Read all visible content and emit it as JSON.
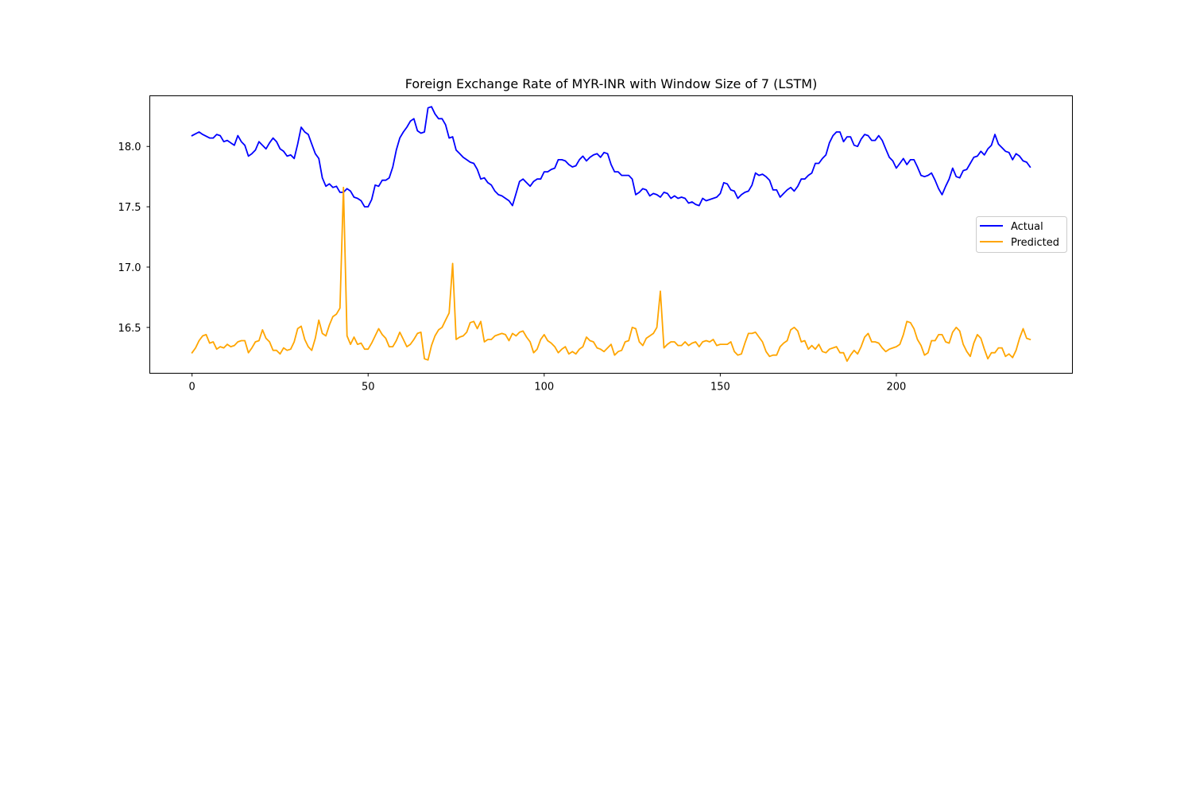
{
  "chart_data": {
    "type": "line",
    "title": "Foreign Exchange Rate of MYR-INR with Window Size of 7 (LSTM)",
    "xlabel": "",
    "ylabel": "",
    "xlim": [
      -12,
      250
    ],
    "ylim": [
      16.12,
      18.42
    ],
    "x_ticks": [
      0,
      50,
      100,
      150,
      200
    ],
    "y_ticks": [
      16.5,
      17.0,
      17.5,
      18.0
    ],
    "x_tick_labels": [
      "0",
      "50",
      "100",
      "150",
      "200"
    ],
    "y_tick_labels": [
      "16.5",
      "17.0",
      "17.5",
      "18.0"
    ],
    "grid": false,
    "legend_position": "center-right",
    "series": [
      {
        "name": "Actual",
        "color": "#0000ff",
        "x": [
          0,
          2,
          3,
          5,
          6,
          7,
          8,
          9,
          10,
          11,
          12,
          13,
          14,
          15,
          16,
          17,
          18,
          19,
          20,
          21,
          22,
          23,
          24,
          25,
          26,
          27,
          28,
          29,
          30,
          31,
          32,
          33,
          34,
          35,
          36,
          37,
          38,
          39,
          40,
          41,
          42,
          43,
          44,
          45,
          46,
          47,
          48,
          49,
          50,
          51,
          52,
          53,
          54,
          55,
          56,
          57,
          58,
          59,
          60,
          61,
          62,
          63,
          64,
          65,
          66,
          67,
          68,
          69,
          70,
          71,
          72,
          73,
          74,
          75,
          76,
          77,
          78,
          79,
          80,
          81,
          82,
          83,
          84,
          85,
          86,
          87,
          88,
          89,
          90,
          91,
          92,
          93,
          94,
          95,
          96,
          97,
          98,
          99,
          100,
          101,
          102,
          103,
          104,
          105,
          106,
          107,
          108,
          109,
          110,
          111,
          112,
          113,
          114,
          115,
          116,
          117,
          118,
          119,
          120,
          121,
          122,
          123,
          124,
          125,
          126,
          127,
          128,
          129,
          130,
          131,
          132,
          133,
          134,
          135,
          136,
          137,
          138,
          139,
          140,
          141,
          142,
          143,
          144,
          145,
          146,
          147,
          148,
          149,
          150,
          151,
          152,
          153,
          154,
          155,
          156,
          157,
          158,
          159,
          160,
          161,
          162,
          163,
          164,
          165,
          166,
          167,
          168,
          169,
          170,
          171,
          172,
          173,
          174,
          175,
          176,
          177,
          178,
          179,
          180,
          181,
          182,
          183,
          184,
          185,
          186,
          187,
          188,
          189,
          190,
          191,
          192,
          193,
          194,
          195,
          196,
          197,
          198,
          199,
          200,
          201,
          202,
          203,
          204,
          205,
          206,
          207,
          208,
          209,
          210,
          211,
          212,
          213,
          214,
          215,
          216,
          217,
          218,
          219,
          220,
          221,
          222,
          223,
          224,
          225,
          226,
          227,
          228,
          229,
          230,
          231,
          232,
          233,
          234,
          235,
          236,
          237,
          238
        ],
        "values": [
          18.09,
          18.12,
          18.1,
          18.07,
          18.07,
          18.1,
          18.09,
          18.04,
          18.05,
          18.03,
          18.01,
          18.09,
          18.04,
          18.01,
          17.92,
          17.94,
          17.97,
          18.04,
          18.01,
          17.98,
          18.03,
          18.07,
          18.04,
          17.98,
          17.96,
          17.92,
          17.93,
          17.9,
          18.02,
          18.16,
          18.12,
          18.1,
          18.02,
          17.94,
          17.9,
          17.74,
          17.67,
          17.69,
          17.66,
          17.67,
          17.62,
          17.62,
          17.65,
          17.63,
          17.58,
          17.57,
          17.55,
          17.5,
          17.5,
          17.56,
          17.68,
          17.67,
          17.72,
          17.72,
          17.74,
          17.83,
          17.97,
          18.07,
          18.12,
          18.16,
          18.21,
          18.23,
          18.13,
          18.11,
          18.12,
          18.32,
          18.33,
          18.27,
          18.23,
          18.23,
          18.18,
          18.07,
          18.08,
          17.97,
          17.94,
          17.91,
          17.89,
          17.87,
          17.86,
          17.81,
          17.73,
          17.74,
          17.7,
          17.68,
          17.63,
          17.6,
          17.59,
          17.57,
          17.55,
          17.51,
          17.61,
          17.71,
          17.73,
          17.7,
          17.67,
          17.71,
          17.73,
          17.73,
          17.79,
          17.79,
          17.81,
          17.82,
          17.89,
          17.89,
          17.88,
          17.85,
          17.83,
          17.84,
          17.89,
          17.92,
          17.88,
          17.91,
          17.93,
          17.94,
          17.91,
          17.95,
          17.94,
          17.85,
          17.79,
          17.79,
          17.76,
          17.76,
          17.76,
          17.73,
          17.6,
          17.62,
          17.65,
          17.64,
          17.59,
          17.61,
          17.6,
          17.58,
          17.62,
          17.61,
          17.57,
          17.59,
          17.57,
          17.58,
          17.57,
          17.53,
          17.54,
          17.52,
          17.51,
          17.57,
          17.55,
          17.56,
          17.57,
          17.58,
          17.61,
          17.7,
          17.69,
          17.64,
          17.63,
          17.57,
          17.6,
          17.62,
          17.63,
          17.68,
          17.78,
          17.76,
          17.77,
          17.75,
          17.72,
          17.64,
          17.64,
          17.58,
          17.61,
          17.64,
          17.66,
          17.63,
          17.67,
          17.73,
          17.73,
          17.76,
          17.78,
          17.86,
          17.86,
          17.9,
          17.93,
          18.03,
          18.09,
          18.12,
          18.12,
          18.04,
          18.08,
          18.08,
          18.01,
          18.0,
          18.06,
          18.1,
          18.09,
          18.05,
          18.05,
          18.09,
          18.05,
          17.98,
          17.91,
          17.88,
          17.82,
          17.86,
          17.9,
          17.85,
          17.89,
          17.89,
          17.83,
          17.76,
          17.75,
          17.76,
          17.78,
          17.72,
          17.65,
          17.6,
          17.67,
          17.73,
          17.82,
          17.75,
          17.74,
          17.8,
          17.81,
          17.86,
          17.91,
          17.92,
          17.96,
          17.93,
          17.98,
          18.01,
          18.1,
          18.02,
          17.99,
          17.96,
          17.95,
          17.89,
          17.94,
          17.92,
          17.88,
          17.87,
          17.83
        ]
      },
      {
        "name": "Predicted",
        "color": "#ffa500",
        "x": [
          0,
          1,
          2,
          3,
          4,
          5,
          6,
          7,
          8,
          9,
          10,
          11,
          12,
          13,
          14,
          15,
          16,
          17,
          18,
          19,
          20,
          21,
          22,
          23,
          24,
          25,
          26,
          27,
          28,
          29,
          30,
          31,
          32,
          33,
          34,
          35,
          36,
          37,
          38,
          39,
          40,
          41,
          42,
          43,
          44,
          45,
          46,
          47,
          48,
          49,
          50,
          51,
          52,
          53,
          54,
          55,
          56,
          57,
          58,
          59,
          60,
          61,
          62,
          63,
          64,
          65,
          66,
          67,
          68,
          69,
          70,
          71,
          72,
          73,
          74,
          75,
          76,
          77,
          78,
          79,
          80,
          81,
          82,
          83,
          84,
          85,
          86,
          87,
          88,
          89,
          90,
          91,
          92,
          93,
          94,
          95,
          96,
          97,
          98,
          99,
          100,
          101,
          102,
          103,
          104,
          105,
          106,
          107,
          108,
          109,
          110,
          111,
          112,
          113,
          114,
          115,
          116,
          117,
          118,
          119,
          120,
          121,
          122,
          123,
          124,
          125,
          126,
          127,
          128,
          129,
          130,
          131,
          132,
          133,
          134,
          135,
          136,
          137,
          138,
          139,
          140,
          141,
          142,
          143,
          144,
          145,
          146,
          147,
          148,
          149,
          150,
          151,
          152,
          153,
          154,
          155,
          156,
          157,
          158,
          159,
          160,
          161,
          162,
          163,
          164,
          165,
          166,
          167,
          168,
          169,
          170,
          171,
          172,
          173,
          174,
          175,
          176,
          177,
          178,
          179,
          180,
          181,
          182,
          183,
          184,
          185,
          186,
          187,
          188,
          189,
          190,
          191,
          192,
          193,
          194,
          195,
          196,
          197,
          198,
          199,
          200,
          201,
          202,
          203,
          204,
          205,
          206,
          207,
          208,
          209,
          210,
          211,
          212,
          213,
          214,
          215,
          216,
          217,
          218,
          219,
          220,
          221,
          222,
          223,
          224,
          225,
          226,
          227,
          228,
          229,
          230,
          231,
          232,
          233,
          234,
          235,
          236,
          237,
          238
        ],
        "values": [
          16.29,
          16.33,
          16.39,
          16.43,
          16.44,
          16.37,
          16.38,
          16.32,
          16.34,
          16.33,
          16.36,
          16.34,
          16.35,
          16.38,
          16.39,
          16.39,
          16.29,
          16.33,
          16.38,
          16.39,
          16.48,
          16.41,
          16.38,
          16.31,
          16.31,
          16.28,
          16.33,
          16.31,
          16.32,
          16.38,
          16.49,
          16.51,
          16.4,
          16.34,
          16.31,
          16.41,
          16.56,
          16.45,
          16.43,
          16.52,
          16.59,
          16.61,
          16.66,
          17.66,
          16.43,
          16.36,
          16.42,
          16.36,
          16.37,
          16.32,
          16.32,
          16.37,
          16.43,
          16.49,
          16.44,
          16.41,
          16.34,
          16.34,
          16.39,
          16.46,
          16.4,
          16.34,
          16.36,
          16.4,
          16.45,
          16.46,
          16.24,
          16.23,
          16.35,
          16.43,
          16.48,
          16.5,
          16.56,
          16.62,
          17.03,
          16.4,
          16.42,
          16.43,
          16.46,
          16.54,
          16.55,
          16.49,
          16.55,
          16.38,
          16.4,
          16.4,
          16.43,
          16.44,
          16.45,
          16.44,
          16.39,
          16.45,
          16.43,
          16.46,
          16.47,
          16.42,
          16.38,
          16.29,
          16.32,
          16.4,
          16.44,
          16.39,
          16.37,
          16.34,
          16.29,
          16.32,
          16.34,
          16.28,
          16.3,
          16.28,
          16.32,
          16.34,
          16.42,
          16.39,
          16.38,
          16.33,
          16.32,
          16.3,
          16.33,
          16.36,
          16.27,
          16.3,
          16.31,
          16.38,
          16.39,
          16.5,
          16.49,
          16.38,
          16.35,
          16.41,
          16.43,
          16.45,
          16.5,
          16.8,
          16.33,
          16.36,
          16.38,
          16.38,
          16.35,
          16.35,
          16.38,
          16.35,
          16.37,
          16.38,
          16.34,
          16.38,
          16.39,
          16.38,
          16.4,
          16.35,
          16.36,
          16.36,
          16.36,
          16.38,
          16.3,
          16.27,
          16.28,
          16.37,
          16.45,
          16.45,
          16.46,
          16.42,
          16.38,
          16.3,
          16.26,
          16.27,
          16.27,
          16.34,
          16.37,
          16.39,
          16.48,
          16.5,
          16.47,
          16.38,
          16.39,
          16.32,
          16.35,
          16.32,
          16.36,
          16.3,
          16.29,
          16.32,
          16.33,
          16.34,
          16.29,
          16.29,
          16.22,
          16.27,
          16.31,
          16.28,
          16.34,
          16.42,
          16.45,
          16.38,
          16.38,
          16.37,
          16.33,
          16.3,
          16.32,
          16.33,
          16.34,
          16.36,
          16.44,
          16.55,
          16.54,
          16.49,
          16.4,
          16.35,
          16.27,
          16.29,
          16.39,
          16.39,
          16.44,
          16.44,
          16.38,
          16.37,
          16.46,
          16.5,
          16.47,
          16.36,
          16.3,
          16.26,
          16.37,
          16.44,
          16.41,
          16.32,
          16.24,
          16.29,
          16.29,
          16.33,
          16.33,
          16.26,
          16.28,
          16.25,
          16.31,
          16.41,
          16.49,
          16.41,
          16.4
        ]
      }
    ]
  }
}
